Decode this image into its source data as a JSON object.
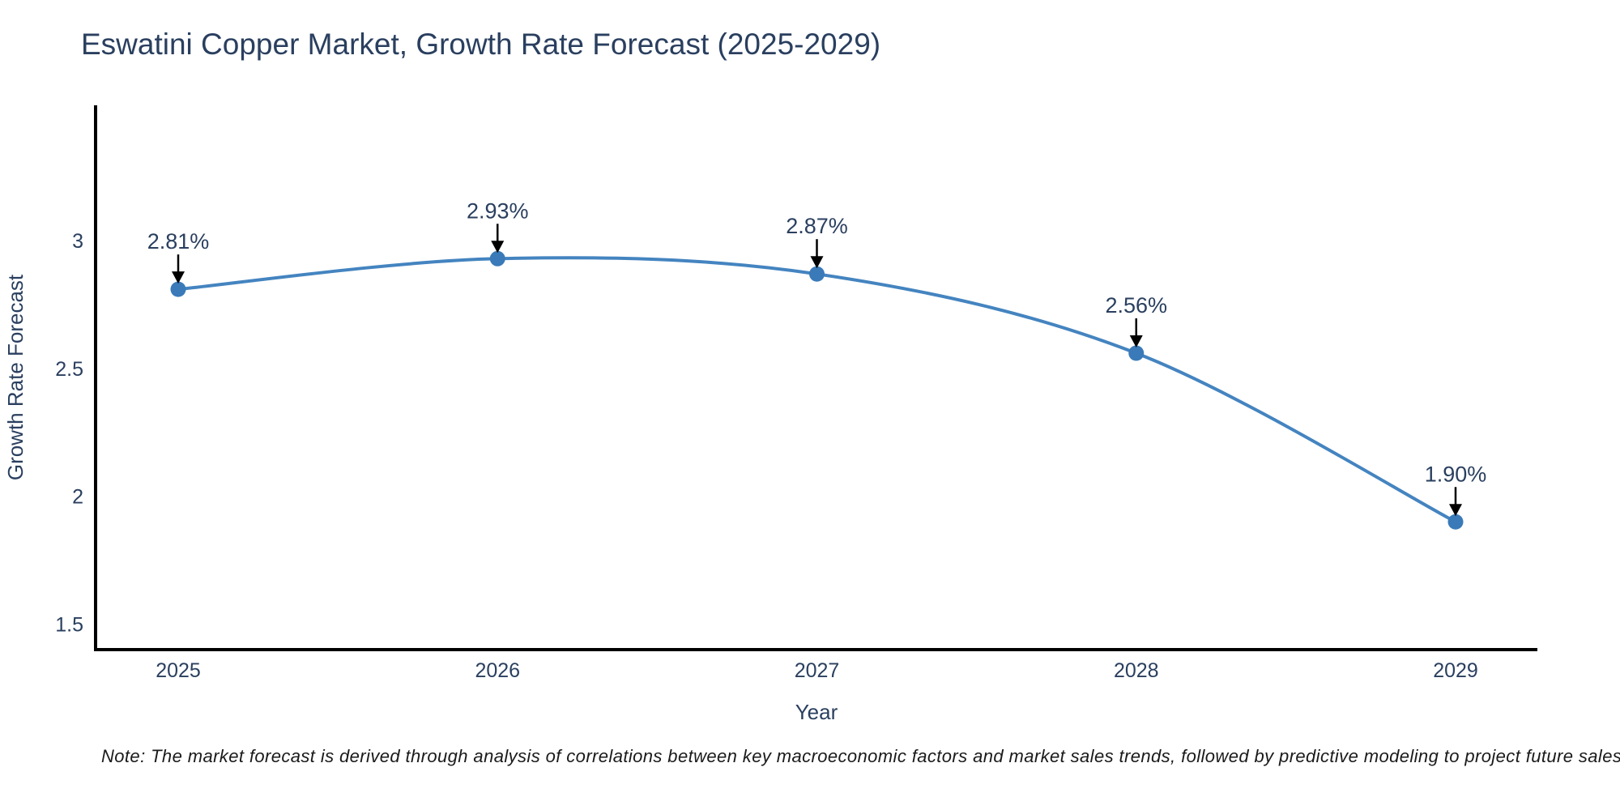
{
  "chart_data": {
    "type": "line",
    "title": "Eswatini Copper Market, Growth Rate Forecast (2025-2029)",
    "x": [
      "2025",
      "2026",
      "2027",
      "2028",
      "2029"
    ],
    "series": [
      {
        "name": "Growth Rate Forecast",
        "values": [
          2.81,
          2.93,
          2.87,
          2.56,
          1.9
        ]
      }
    ],
    "point_labels": [
      "2.81%",
      "2.93%",
      "2.87%",
      "2.56%",
      "1.90%"
    ],
    "xlabel": "Year",
    "ylabel": "Growth Rate Forecast",
    "yticks": [
      {
        "value": 1.5,
        "label": "1.5"
      },
      {
        "value": 2,
        "label": "2"
      },
      {
        "value": 2.5,
        "label": "2.5"
      },
      {
        "value": 3,
        "label": "3"
      }
    ],
    "ylim": [
      1.4,
      3.53
    ],
    "line_shape": "spline",
    "grid": false,
    "legend": "none",
    "note": "Note: The market forecast is derived through analysis of correlations between key macroeconomic factors and market sales trends, followed by predictive modeling to project future sales",
    "colors": {
      "line": "#4484c0",
      "marker": "#3a7ab8",
      "axis": "#000000",
      "arrow": "#000000",
      "text": "#2a3f5f",
      "note_text": "#1a1a1a",
      "background": "#ffffff"
    }
  }
}
